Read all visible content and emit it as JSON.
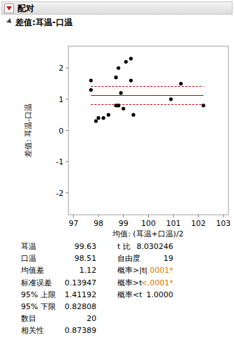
{
  "header": "配对",
  "chart_data": {
    "type": "scatter",
    "title": "差值:耳温-口温",
    "x_label": "均值: (耳温+口温)/2",
    "y_label": "差值: 耳温-口温",
    "x": [
      97.7,
      97.7,
      97.9,
      98.0,
      98.2,
      98.4,
      98.7,
      98.8,
      98.7,
      98.8,
      98.9,
      99.1,
      99.0,
      99.3,
      99.3,
      99.4,
      100.9,
      101.3,
      102.2,
      98.8
    ],
    "values": [
      1.6,
      1.3,
      0.3,
      0.4,
      0.4,
      0.5,
      1.7,
      2.0,
      0.8,
      0.8,
      1.2,
      2.2,
      0.7,
      1.6,
      2.3,
      0.5,
      1.0,
      1.5,
      0.8,
      0.8
    ],
    "xlim": [
      96.8,
      103.2
    ],
    "ylim": [
      -2.7,
      2.7
    ],
    "xticks": [
      97,
      98,
      99,
      100,
      101,
      102,
      103
    ],
    "yticks": [
      -2,
      -1,
      0,
      1,
      2
    ],
    "color": "#000000",
    "marker": "circle"
  },
  "stats": {
    "left": [
      {
        "label": "耳温",
        "value": 99.63
      },
      {
        "label": "口温",
        "value": 98.51
      },
      {
        "label": "均值差",
        "value": 1.12
      },
      {
        "label": "标准误差",
        "value": 0.13947
      },
      {
        "label": "95% 上限",
        "value": 1.41192
      },
      {
        "label": "95% 下限",
        "value": 0.82808
      },
      {
        "label": "数目",
        "value": 20
      },
      {
        "label": "相关性",
        "value": 0.87389
      }
    ],
    "right": [
      {
        "label": "t 比",
        "value": 8.030246
      },
      {
        "label": "自由度",
        "value": 19
      },
      {
        "label": "概率>|t|",
        "value": "<.0001*"
      },
      {
        "label": "概率>t",
        "value": "<.0001*"
      },
      {
        "label": "概率<t",
        "value": "1.0000"
      }
    ]
  }
}
